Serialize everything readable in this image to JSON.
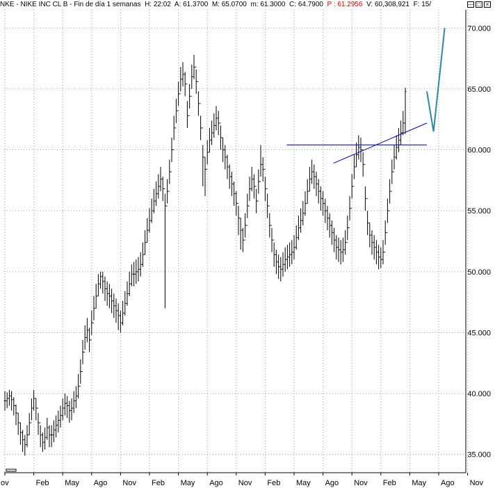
{
  "header": {
    "symbol": "NKE",
    "name": "NIKE INC CL B",
    "period": "Fin de día 1 semanas",
    "h": "H: 22:02",
    "a": "A: 61.3700",
    "m": "M: 65.0700",
    "mn": "m: 61.3000",
    "c": "C: 64.7900",
    "p": "P : 61.2956",
    "v": "V: 60,308,921",
    "f": "F: 15/",
    "p_color": "#e00000"
  },
  "window_icons": [
    "minimize-icon",
    "restore-icon",
    "close-icon"
  ],
  "chart_data": {
    "type": "ohlc",
    "title": "NKE - NIKE INC CL B - Fin de día 1 semanas",
    "ylim": [
      33.5,
      71.5
    ],
    "y_ticks": [
      "35.000",
      "40.000",
      "45.000",
      "50.000",
      "55.000",
      "60.000",
      "65.000",
      "70.000"
    ],
    "y_tick_values": [
      35,
      40,
      45,
      50,
      55,
      60,
      65,
      70
    ],
    "x_ticks": [
      "ov",
      "Feb",
      "May",
      "Ago",
      "Nov",
      "Feb",
      "May",
      "Ago",
      "Nov",
      "Feb",
      "May",
      "Ago",
      "Nov",
      "Feb",
      "May",
      "Ago",
      "Nov"
    ],
    "x_tick_index": [
      0,
      13,
      26,
      39,
      52,
      65,
      78,
      91,
      104,
      117,
      130,
      143,
      156,
      169,
      182,
      195,
      208
    ],
    "bar_color": "#000000",
    "line_color": "#0000cc",
    "forecast_color": "#2a8aa0",
    "grid": true,
    "close": [
      39.4,
      39.6,
      39.8,
      39.5,
      39.0,
      38.4,
      37.6,
      36.8,
      36.2,
      35.8,
      36.6,
      37.6,
      38.8,
      39.6,
      38.8,
      37.6,
      36.6,
      36.0,
      36.4,
      37.2,
      36.6,
      36.6,
      37.0,
      37.4,
      37.8,
      38.2,
      38.8,
      39.2,
      39.0,
      38.6,
      38.8,
      39.4,
      39.8,
      40.6,
      41.8,
      43.4,
      44.6,
      45.2,
      44.4,
      45.8,
      47.0,
      48.0,
      49.0,
      49.6,
      49.2,
      48.6,
      48.2,
      48.0,
      47.6,
      47.2,
      46.8,
      46.4,
      45.8,
      46.6,
      47.4,
      48.2,
      49.0,
      49.8,
      49.8,
      50.0,
      50.2,
      50.6,
      51.4,
      52.4,
      53.4,
      54.2,
      55.0,
      55.8,
      56.4,
      57.0,
      57.6,
      56.8,
      55.4,
      56.6,
      58.2,
      60.0,
      61.8,
      63.2,
      64.6,
      65.8,
      66.2,
      65.4,
      62.8,
      64.4,
      66.0,
      66.8,
      65.6,
      63.8,
      61.8,
      59.4,
      58.4,
      59.8,
      60.8,
      61.4,
      62.0,
      62.6,
      62.2,
      61.0,
      60.0,
      59.4,
      58.6,
      57.8,
      57.2,
      56.4,
      55.6,
      54.4,
      53.4,
      52.6,
      53.8,
      55.4,
      56.8,
      57.6,
      57.0,
      55.8,
      57.4,
      58.8,
      58.4,
      56.8,
      55.4,
      53.8,
      52.6,
      51.4,
      50.8,
      50.4,
      50.2,
      50.6,
      51.0,
      51.2,
      51.4,
      51.6,
      52.0,
      52.8,
      53.6,
      54.2,
      54.8,
      55.6,
      56.6,
      57.6,
      58.2,
      57.8,
      57.2,
      56.6,
      56.0,
      55.6,
      55.0,
      54.4,
      53.8,
      53.2,
      52.6,
      52.0,
      51.8,
      51.6,
      51.8,
      52.4,
      53.6,
      55.2,
      57.0,
      58.6,
      59.6,
      60.2,
      60.0,
      58.8,
      56.0,
      54.0,
      53.0,
      52.4,
      52.0,
      51.6,
      51.2,
      51.0,
      51.6,
      53.2,
      55.0,
      56.6,
      58.2,
      59.4,
      60.2,
      60.8,
      61.4,
      62.2,
      64.8
    ],
    "high": [
      40.2,
      40.1,
      40.3,
      40.2,
      39.7,
      39.1,
      38.4,
      37.6,
      37.0,
      36.6,
      37.4,
      38.4,
      39.6,
      40.3,
      39.6,
      38.4,
      37.4,
      36.8,
      37.2,
      38.0,
      37.4,
      37.4,
      37.8,
      38.2,
      38.6,
      39.0,
      39.6,
      40.0,
      39.8,
      39.4,
      39.6,
      40.2,
      40.6,
      41.6,
      42.8,
      44.4,
      45.6,
      46.2,
      45.4,
      46.8,
      48.0,
      49.0,
      49.8,
      50.0,
      50.0,
      49.6,
      49.2,
      49.0,
      48.6,
      48.2,
      47.8,
      47.4,
      46.8,
      47.6,
      48.4,
      49.2,
      50.0,
      50.6,
      50.8,
      51.0,
      51.2,
      51.6,
      52.4,
      53.4,
      54.4,
      55.2,
      56.0,
      56.8,
      57.4,
      58.0,
      58.6,
      57.8,
      56.4,
      57.6,
      59.2,
      61.0,
      62.8,
      64.2,
      65.6,
      66.8,
      67.2,
      66.4,
      64.0,
      65.4,
      67.0,
      67.8,
      66.6,
      64.8,
      62.8,
      60.4,
      59.4,
      60.8,
      61.8,
      62.4,
      63.0,
      63.6,
      63.2,
      62.0,
      61.0,
      60.4,
      59.6,
      58.8,
      58.2,
      57.4,
      56.6,
      55.4,
      54.4,
      53.6,
      54.8,
      56.4,
      57.8,
      58.6,
      58.0,
      56.8,
      58.4,
      60.4,
      59.4,
      57.8,
      56.4,
      54.8,
      53.6,
      52.4,
      51.8,
      51.4,
      51.2,
      51.6,
      52.0,
      52.2,
      52.4,
      52.6,
      53.0,
      53.8,
      54.6,
      55.2,
      55.8,
      56.6,
      57.6,
      58.6,
      59.2,
      58.8,
      58.2,
      57.6,
      57.0,
      56.6,
      56.0,
      55.4,
      54.8,
      54.2,
      53.6,
      53.0,
      52.8,
      52.6,
      52.8,
      53.4,
      54.6,
      56.2,
      58.0,
      59.6,
      60.6,
      61.2,
      61.0,
      59.8,
      57.0,
      55.0,
      54.0,
      53.4,
      53.0,
      52.6,
      52.2,
      52.0,
      52.6,
      54.2,
      56.0,
      57.6,
      59.2,
      60.4,
      61.2,
      61.8,
      62.4,
      63.2,
      65.1
    ],
    "low": [
      38.6,
      38.8,
      39.0,
      38.6,
      38.2,
      37.4,
      36.6,
      35.8,
      35.2,
      34.9,
      35.6,
      36.6,
      37.8,
      38.6,
      37.8,
      36.6,
      35.6,
      35.2,
      35.4,
      36.2,
      35.6,
      35.6,
      36.0,
      36.4,
      36.8,
      37.2,
      37.8,
      38.2,
      38.0,
      37.6,
      37.8,
      38.4,
      38.8,
      39.6,
      40.8,
      42.4,
      43.6,
      44.2,
      43.4,
      44.8,
      46.0,
      47.0,
      48.0,
      48.6,
      48.2,
      47.6,
      47.2,
      47.0,
      46.6,
      46.2,
      45.8,
      45.2,
      45.0,
      45.6,
      46.4,
      47.2,
      48.0,
      48.8,
      48.8,
      49.0,
      49.2,
      49.6,
      50.4,
      51.4,
      52.4,
      53.2,
      54.0,
      54.8,
      55.4,
      56.0,
      56.6,
      55.8,
      47.0,
      55.6,
      57.2,
      59.0,
      60.8,
      62.2,
      63.6,
      64.8,
      65.2,
      64.4,
      61.8,
      63.4,
      65.0,
      65.8,
      64.6,
      62.8,
      60.8,
      57.0,
      56.2,
      58.8,
      59.8,
      60.4,
      61.0,
      61.6,
      61.2,
      60.0,
      59.0,
      58.4,
      57.6,
      56.8,
      56.2,
      55.4,
      54.6,
      53.0,
      51.8,
      51.6,
      52.8,
      54.4,
      55.8,
      56.6,
      56.0,
      54.8,
      56.4,
      57.8,
      57.4,
      55.8,
      54.4,
      52.8,
      51.6,
      50.4,
      49.8,
      49.4,
      49.2,
      49.6,
      50.0,
      50.2,
      50.4,
      50.6,
      51.0,
      51.8,
      52.6,
      53.2,
      53.8,
      54.6,
      55.6,
      56.6,
      57.2,
      56.8,
      56.2,
      55.6,
      55.0,
      54.6,
      54.0,
      53.4,
      52.8,
      52.2,
      51.6,
      51.0,
      50.8,
      50.6,
      50.8,
      51.4,
      52.6,
      54.2,
      56.0,
      57.6,
      58.6,
      59.2,
      59.0,
      57.8,
      55.0,
      53.0,
      52.0,
      51.4,
      51.0,
      50.6,
      50.2,
      50.3,
      50.6,
      52.2,
      54.0,
      55.6,
      57.2,
      58.4,
      59.2,
      59.8,
      60.4,
      61.2,
      61.3
    ],
    "overlays": {
      "resistance_line": {
        "from": [
          127,
          60.4
        ],
        "to": [
          190,
          60.4
        ]
      },
      "trend_line": {
        "from": [
          148,
          58.9
        ],
        "to": [
          190,
          62.2
        ]
      },
      "forecast_path": {
        "points": [
          [
            190,
            64.8
          ],
          [
            193,
            61.5
          ],
          [
            198,
            70.0
          ]
        ]
      }
    }
  }
}
